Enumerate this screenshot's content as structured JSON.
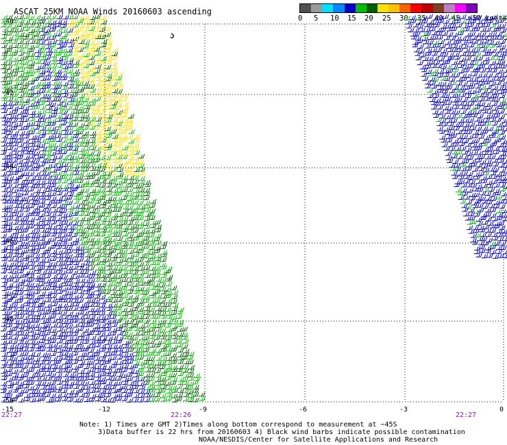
{
  "title": "ASCAT 25KM NOAA Winds 20160603 ascending",
  "colorbar": {
    "colors": [
      "#505050",
      "#9a9a9a",
      "#00e0ff",
      "#0088ff",
      "#0000cc",
      "#00c000",
      "#006000",
      "#ffe000",
      "#ffc000",
      "#ff6000",
      "#ff0000",
      "#c00000",
      "#804020",
      "#c080c0",
      "#ff00ff",
      "#8000c0"
    ],
    "labels": [
      "0",
      "5",
      "10",
      "15",
      "20",
      "25",
      "30",
      "35",
      "40",
      "45",
      ">50 knots"
    ]
  },
  "lat_labels": [
    "-40",
    "-42",
    "-44",
    "-46",
    "-48",
    "-50"
  ],
  "lon_labels": [
    "-15",
    "-12",
    "-9",
    "-6",
    "-3",
    "0"
  ],
  "time_labels": [
    "22:27",
    "22:26",
    "22:27"
  ],
  "notes": {
    "line1": "Note: 1) Times are GMT 2)Times along bottom correspond to measurement at −45S",
    "line2": "3)Data buffer is 22 hrs from 20160603 4) Black wind barbs indicate possible contamination",
    "line3": "NOAA/NESDIS/Center for Satellite Applications and Research"
  },
  "swaths": {
    "left_colors": {
      "far_west": "#0000cc",
      "mid": "#00c000",
      "east": "#006000",
      "north_east": "#ffe000"
    },
    "right_colors": {
      "main": "#0000cc",
      "edge": "#00c000"
    }
  }
}
